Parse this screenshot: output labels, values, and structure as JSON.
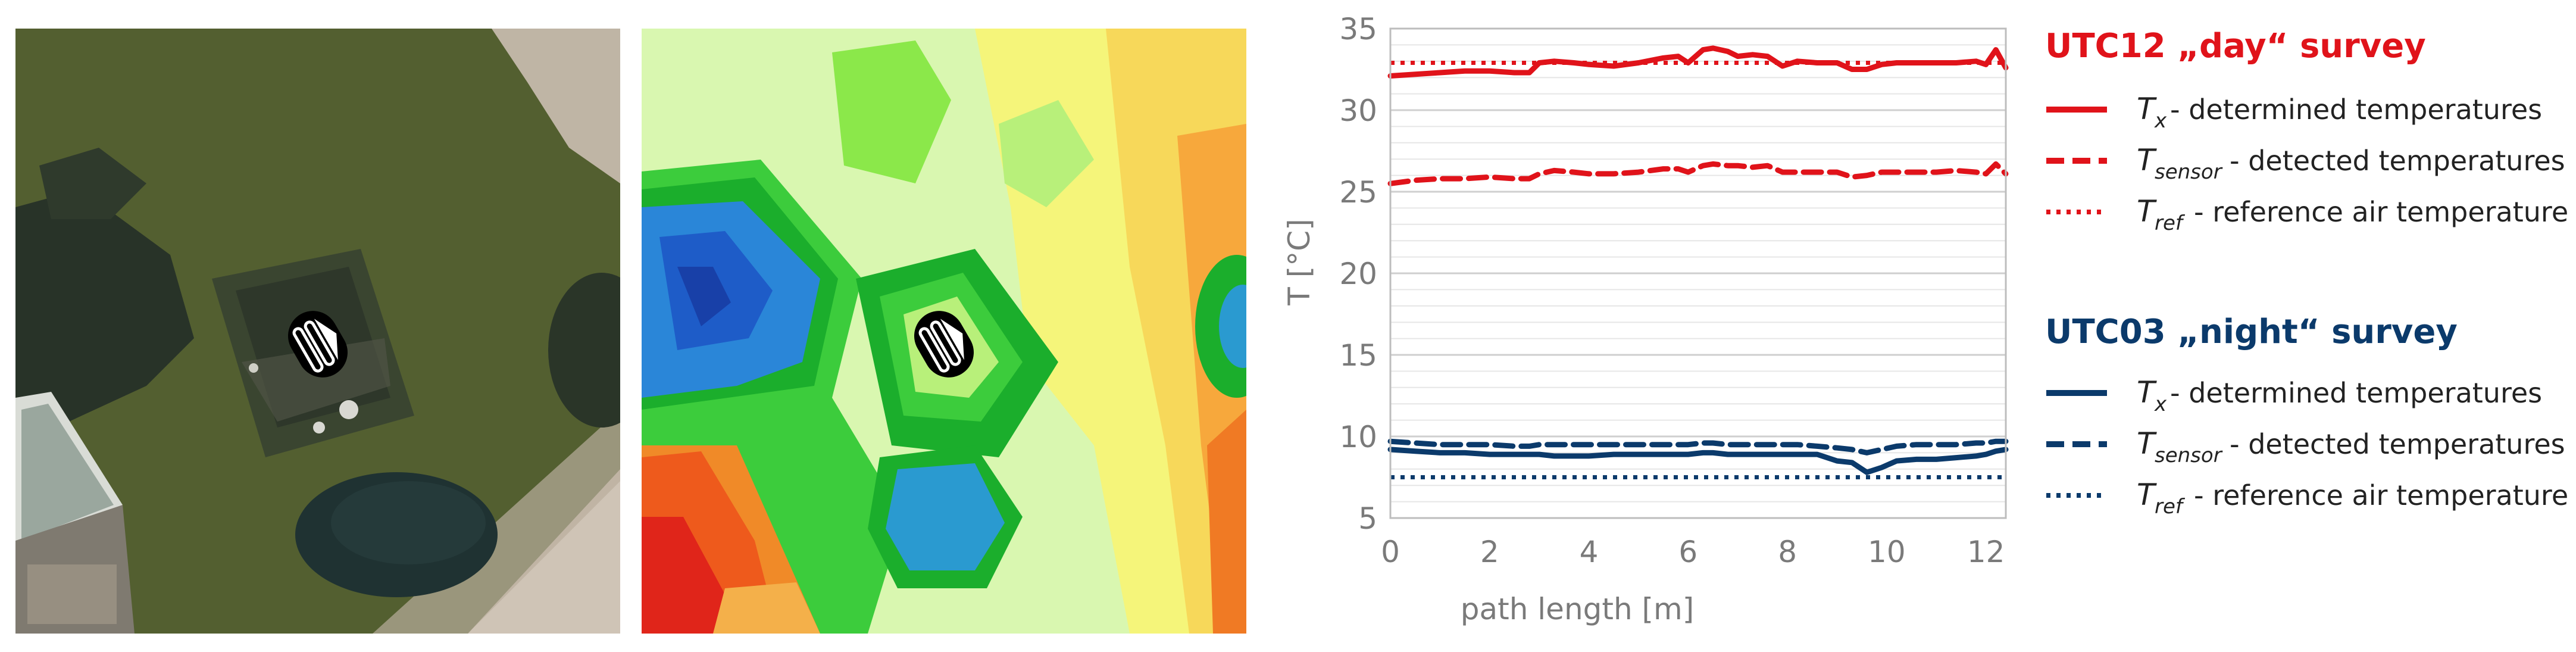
{
  "panels": {
    "aerial_photo": "aerial-photo-icon",
    "thermal_map": "thermal-map-icon",
    "sensor_marker": "sensor-arrow-icon"
  },
  "chart_data": {
    "type": "line",
    "title": "",
    "xlabel": "path length [m]",
    "ylabel": "T [°C]",
    "xlim": [
      0,
      12.4
    ],
    "ylim": [
      5,
      35
    ],
    "xticks": [
      0,
      2,
      4,
      6,
      8,
      10,
      12
    ],
    "yticks": [
      5,
      10,
      15,
      20,
      25,
      30,
      35
    ],
    "minor_grid_step": 1,
    "grid": true,
    "x": [
      0,
      0.5,
      1,
      1.5,
      2,
      2.5,
      2.8,
      3,
      3.3,
      3.7,
      4,
      4.5,
      5,
      5.5,
      5.8,
      6,
      6.3,
      6.5,
      6.8,
      7,
      7.3,
      7.6,
      7.9,
      8.2,
      8.6,
      9,
      9.3,
      9.6,
      9.9,
      10.2,
      10.6,
      11,
      11.4,
      11.8,
      12,
      12.2,
      12.4
    ],
    "series": [
      {
        "name": "UTC12 Tx",
        "survey": "day",
        "style": "solid",
        "color": "#e0131a",
        "values": [
          32.1,
          32.2,
          32.3,
          32.4,
          32.4,
          32.3,
          32.3,
          32.9,
          33.0,
          32.9,
          32.8,
          32.7,
          32.9,
          33.2,
          33.3,
          32.9,
          33.7,
          33.8,
          33.6,
          33.3,
          33.4,
          33.3,
          32.7,
          33.0,
          32.9,
          32.9,
          32.5,
          32.5,
          32.8,
          32.9,
          32.9,
          32.9,
          32.9,
          33.0,
          32.8,
          33.7,
          32.6
        ]
      },
      {
        "name": "UTC12 Tsensor",
        "survey": "day",
        "style": "dashed",
        "color": "#e0131a",
        "values": [
          25.5,
          25.7,
          25.8,
          25.8,
          25.9,
          25.8,
          25.8,
          26.1,
          26.3,
          26.2,
          26.1,
          26.1,
          26.2,
          26.4,
          26.4,
          26.2,
          26.6,
          26.7,
          26.6,
          26.6,
          26.5,
          26.6,
          26.2,
          26.2,
          26.2,
          26.2,
          25.9,
          26.0,
          26.2,
          26.2,
          26.2,
          26.2,
          26.3,
          26.2,
          26.1,
          26.7,
          26.1
        ]
      },
      {
        "name": "UTC12 Tref",
        "survey": "day",
        "style": "dotted",
        "color": "#e0131a",
        "values": [
          32.9,
          32.9,
          32.9,
          32.9,
          32.9,
          32.9,
          32.9,
          32.9,
          32.9,
          32.9,
          32.9,
          32.9,
          32.9,
          32.9,
          32.9,
          32.9,
          32.9,
          32.9,
          32.9,
          32.9,
          32.9,
          32.9,
          32.9,
          32.9,
          32.9,
          32.9,
          32.9,
          32.9,
          32.9,
          32.9,
          32.9,
          32.9,
          32.9,
          32.9,
          32.9,
          32.9,
          32.9
        ]
      },
      {
        "name": "UTC03 Tx",
        "survey": "night",
        "style": "solid",
        "color": "#0b3a6b",
        "values": [
          9.2,
          9.1,
          9.0,
          9.0,
          8.9,
          8.9,
          8.9,
          8.9,
          8.8,
          8.8,
          8.8,
          8.9,
          8.9,
          8.9,
          8.9,
          8.9,
          9.0,
          9.0,
          8.9,
          8.9,
          8.9,
          8.9,
          8.9,
          8.9,
          8.9,
          8.5,
          8.4,
          7.8,
          8.1,
          8.5,
          8.6,
          8.6,
          8.7,
          8.8,
          8.9,
          9.1,
          9.2
        ]
      },
      {
        "name": "UTC03 Tsensor",
        "survey": "night",
        "style": "dashed",
        "color": "#0b3a6b",
        "values": [
          9.7,
          9.6,
          9.5,
          9.5,
          9.5,
          9.4,
          9.4,
          9.5,
          9.5,
          9.5,
          9.5,
          9.5,
          9.5,
          9.5,
          9.5,
          9.5,
          9.6,
          9.6,
          9.5,
          9.5,
          9.5,
          9.5,
          9.5,
          9.5,
          9.4,
          9.3,
          9.2,
          9.0,
          9.2,
          9.4,
          9.5,
          9.5,
          9.5,
          9.6,
          9.6,
          9.7,
          9.7
        ]
      },
      {
        "name": "UTC03 Tref",
        "survey": "night",
        "style": "dotted",
        "color": "#0b3a6b",
        "values": [
          7.5,
          7.5,
          7.5,
          7.5,
          7.5,
          7.5,
          7.5,
          7.5,
          7.5,
          7.5,
          7.5,
          7.5,
          7.5,
          7.5,
          7.5,
          7.5,
          7.5,
          7.5,
          7.5,
          7.5,
          7.5,
          7.5,
          7.5,
          7.5,
          7.5,
          7.5,
          7.5,
          7.5,
          7.5,
          7.5,
          7.5,
          7.5,
          7.5,
          7.5,
          7.5,
          7.5,
          7.5
        ]
      }
    ]
  },
  "legend": {
    "day": {
      "title": "UTC12 „day“ survey",
      "color": "#e0131a",
      "items": [
        {
          "symbol": "T",
          "sub": "x",
          "text": "- determined temperatures",
          "style": "solid"
        },
        {
          "symbol": "T",
          "sub": "sensor",
          "text": "- detected temperatures",
          "style": "dashed"
        },
        {
          "symbol": "T",
          "sub": "ref",
          "text": " - reference air temperature",
          "style": "dotted"
        }
      ]
    },
    "night": {
      "title": "UTC03 „night“ survey",
      "color": "#0b3a6b",
      "items": [
        {
          "symbol": "T",
          "sub": "x",
          "text": "- determined temperatures",
          "style": "solid"
        },
        {
          "symbol": "T",
          "sub": "sensor",
          "text": "- detected temperatures",
          "style": "dashed"
        },
        {
          "symbol": "T",
          "sub": "ref",
          "text": " - reference air temperature",
          "style": "dotted"
        }
      ]
    }
  }
}
